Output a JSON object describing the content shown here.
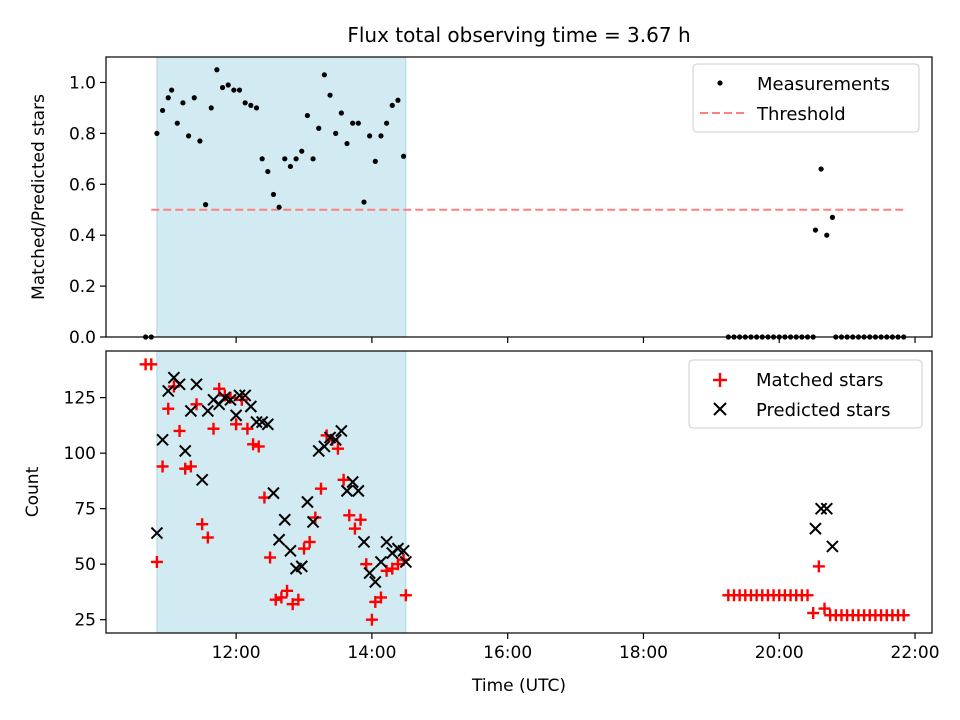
{
  "figure": {
    "title": "Flux total observing time = 3.67 h",
    "xlabel": "Time (UTC)"
  },
  "colors": {
    "shade": "#add8e6",
    "measurement": "#000000",
    "threshold": "#ff7f7f",
    "matched": "#ff0000",
    "predicted": "#000000"
  },
  "chart_data": [
    {
      "type": "scatter",
      "ylabel": "Matched/Predicted stars",
      "xlim": [
        "10:05",
        "22:15"
      ],
      "ylim": [
        0,
        1.1
      ],
      "x_ticks": [
        "12:00",
        "14:00",
        "16:00",
        "18:00",
        "20:00",
        "22:00"
      ],
      "x_ticks_labeled": false,
      "y_ticks": [
        "0.0",
        "0.2",
        "0.4",
        "0.6",
        "0.8",
        "1.0"
      ],
      "grid": false,
      "legend": {
        "position": "top-right",
        "entries": [
          "Measurements",
          "Threshold"
        ]
      },
      "shaded_interval": {
        "start": "10:50",
        "end": "14:30"
      },
      "threshold": {
        "name": "Threshold",
        "value": 0.5,
        "x_start": "10:45",
        "x_end": "21:50",
        "style": "dashed"
      },
      "series": [
        {
          "name": "Measurements",
          "marker": "dot",
          "points": [
            [
              "10:40",
              0
            ],
            [
              "10:45",
              0
            ],
            [
              "10:50",
              0.8
            ],
            [
              "10:55",
              0.89
            ],
            [
              "11:00",
              0.94
            ],
            [
              "11:03",
              0.97
            ],
            [
              "11:08",
              0.84
            ],
            [
              "11:13",
              0.92
            ],
            [
              "11:18",
              0.79
            ],
            [
              "11:23",
              0.94
            ],
            [
              "11:28",
              0.77
            ],
            [
              "11:33",
              0.52
            ],
            [
              "11:38",
              0.9
            ],
            [
              "11:43",
              1.05
            ],
            [
              "11:48",
              0.98
            ],
            [
              "11:53",
              0.99
            ],
            [
              "11:58",
              0.97
            ],
            [
              "12:03",
              0.97
            ],
            [
              "12:08",
              0.92
            ],
            [
              "12:13",
              0.91
            ],
            [
              "12:18",
              0.9
            ],
            [
              "12:23",
              0.7
            ],
            [
              "12:28",
              0.65
            ],
            [
              "12:33",
              0.56
            ],
            [
              "12:38",
              0.51
            ],
            [
              "12:43",
              0.7
            ],
            [
              "12:48",
              0.67
            ],
            [
              "12:53",
              0.7
            ],
            [
              "12:58",
              0.73
            ],
            [
              "13:03",
              0.87
            ],
            [
              "13:08",
              0.7
            ],
            [
              "13:13",
              0.82
            ],
            [
              "13:18",
              1.03
            ],
            [
              "13:23",
              0.95
            ],
            [
              "13:28",
              0.8
            ],
            [
              "13:33",
              0.88
            ],
            [
              "13:38",
              0.76
            ],
            [
              "13:43",
              0.84
            ],
            [
              "13:48",
              0.84
            ],
            [
              "13:53",
              0.53
            ],
            [
              "13:58",
              0.79
            ],
            [
              "14:03",
              0.69
            ],
            [
              "14:08",
              0.79
            ],
            [
              "14:13",
              0.84
            ],
            [
              "14:18",
              0.91
            ],
            [
              "14:23",
              0.93
            ],
            [
              "14:28",
              0.71
            ],
            [
              "19:15",
              0
            ],
            [
              "19:20",
              0
            ],
            [
              "19:25",
              0
            ],
            [
              "19:30",
              0
            ],
            [
              "19:35",
              0
            ],
            [
              "19:40",
              0
            ],
            [
              "19:45",
              0
            ],
            [
              "19:50",
              0
            ],
            [
              "19:55",
              0
            ],
            [
              "20:00",
              0
            ],
            [
              "20:05",
              0
            ],
            [
              "20:10",
              0
            ],
            [
              "20:15",
              0
            ],
            [
              "20:20",
              0
            ],
            [
              "20:25",
              0
            ],
            [
              "20:30",
              0
            ],
            [
              "20:32",
              0.42
            ],
            [
              "20:37",
              0.66
            ],
            [
              "20:42",
              0.4
            ],
            [
              "20:47",
              0.47
            ],
            [
              "20:50",
              0
            ],
            [
              "20:55",
              0
            ],
            [
              "21:00",
              0
            ],
            [
              "21:05",
              0
            ],
            [
              "21:10",
              0
            ],
            [
              "21:15",
              0
            ],
            [
              "21:20",
              0
            ],
            [
              "21:25",
              0
            ],
            [
              "21:30",
              0
            ],
            [
              "21:35",
              0
            ],
            [
              "21:40",
              0
            ],
            [
              "21:45",
              0
            ],
            [
              "21:50",
              0
            ]
          ]
        }
      ]
    },
    {
      "type": "scatter",
      "ylabel": "Count",
      "xlabel": "Time (UTC)",
      "xlim": [
        "10:05",
        "22:15"
      ],
      "ylim": [
        19,
        146
      ],
      "x_ticks": [
        "12:00",
        "14:00",
        "16:00",
        "18:00",
        "20:00",
        "22:00"
      ],
      "y_ticks": [
        "25",
        "50",
        "75",
        "100",
        "125"
      ],
      "grid": false,
      "legend": {
        "position": "top-right",
        "entries": [
          "Matched stars",
          "Predicted stars"
        ]
      },
      "shaded_interval": {
        "start": "10:50",
        "end": "14:30"
      },
      "series": [
        {
          "name": "Matched stars",
          "marker": "plus",
          "points": [
            [
              "10:40",
              140
            ],
            [
              "10:45",
              140
            ],
            [
              "10:50",
              51
            ],
            [
              "10:55",
              94
            ],
            [
              "11:00",
              120
            ],
            [
              "11:05",
              130
            ],
            [
              "11:10",
              110
            ],
            [
              "11:15",
              93
            ],
            [
              "11:20",
              94
            ],
            [
              "11:25",
              122
            ],
            [
              "11:30",
              68
            ],
            [
              "11:35",
              62
            ],
            [
              "11:40",
              111
            ],
            [
              "11:45",
              129
            ],
            [
              "11:50",
              126
            ],
            [
              "11:55",
              125
            ],
            [
              "12:00",
              113
            ],
            [
              "12:05",
              124
            ],
            [
              "12:10",
              111
            ],
            [
              "12:15",
              104
            ],
            [
              "12:20",
              103
            ],
            [
              "12:25",
              80
            ],
            [
              "12:30",
              53
            ],
            [
              "12:35",
              34
            ],
            [
              "12:40",
              35
            ],
            [
              "12:45",
              38
            ],
            [
              "12:50",
              32
            ],
            [
              "12:55",
              34
            ],
            [
              "13:00",
              57
            ],
            [
              "13:05",
              60
            ],
            [
              "13:10",
              71
            ],
            [
              "13:15",
              84
            ],
            [
              "13:20",
              108
            ],
            [
              "13:25",
              106
            ],
            [
              "13:30",
              102
            ],
            [
              "13:35",
              88
            ],
            [
              "13:40",
              72
            ],
            [
              "13:45",
              66
            ],
            [
              "13:50",
              70
            ],
            [
              "13:55",
              50
            ],
            [
              "14:00",
              25
            ],
            [
              "14:03",
              33
            ],
            [
              "14:08",
              35
            ],
            [
              "14:13",
              47
            ],
            [
              "14:18",
              48
            ],
            [
              "14:23",
              50
            ],
            [
              "14:28",
              52
            ],
            [
              "14:30",
              36
            ],
            [
              "19:15",
              36
            ],
            [
              "19:20",
              36
            ],
            [
              "19:25",
              36
            ],
            [
              "19:30",
              36
            ],
            [
              "19:35",
              36
            ],
            [
              "19:40",
              36
            ],
            [
              "19:45",
              36
            ],
            [
              "19:50",
              36
            ],
            [
              "19:55",
              36
            ],
            [
              "20:00",
              36
            ],
            [
              "20:05",
              36
            ],
            [
              "20:10",
              36
            ],
            [
              "20:15",
              36
            ],
            [
              "20:20",
              36
            ],
            [
              "20:25",
              36
            ],
            [
              "20:30",
              28
            ],
            [
              "20:35",
              49
            ],
            [
              "20:40",
              30
            ],
            [
              "20:45",
              27
            ],
            [
              "20:50",
              27
            ],
            [
              "20:55",
              27
            ],
            [
              "21:00",
              27
            ],
            [
              "21:05",
              27
            ],
            [
              "21:10",
              27
            ],
            [
              "21:15",
              27
            ],
            [
              "21:20",
              27
            ],
            [
              "21:25",
              27
            ],
            [
              "21:30",
              27
            ],
            [
              "21:35",
              27
            ],
            [
              "21:40",
              27
            ],
            [
              "21:45",
              27
            ],
            [
              "21:50",
              27
            ]
          ]
        },
        {
          "name": "Predicted stars",
          "marker": "x",
          "points": [
            [
              "10:50",
              64
            ],
            [
              "10:55",
              106
            ],
            [
              "11:00",
              128
            ],
            [
              "11:05",
              134
            ],
            [
              "11:10",
              131
            ],
            [
              "11:15",
              101
            ],
            [
              "11:20",
              119
            ],
            [
              "11:25",
              131
            ],
            [
              "11:30",
              88
            ],
            [
              "11:35",
              119
            ],
            [
              "11:40",
              124
            ],
            [
              "11:45",
              122
            ],
            [
              "11:50",
              125
            ],
            [
              "11:55",
              124
            ],
            [
              "12:00",
              117
            ],
            [
              "12:03",
              126
            ],
            [
              "12:08",
              126
            ],
            [
              "12:13",
              121
            ],
            [
              "12:18",
              114
            ],
            [
              "12:23",
              114
            ],
            [
              "12:28",
              113
            ],
            [
              "12:33",
              82
            ],
            [
              "12:38",
              61
            ],
            [
              "12:43",
              70
            ],
            [
              "12:48",
              56
            ],
            [
              "12:53",
              48
            ],
            [
              "12:58",
              49
            ],
            [
              "13:03",
              78
            ],
            [
              "13:08",
              69
            ],
            [
              "13:13",
              101
            ],
            [
              "13:18",
              103
            ],
            [
              "13:23",
              107
            ],
            [
              "13:28",
              106
            ],
            [
              "13:33",
              110
            ],
            [
              "13:38",
              83
            ],
            [
              "13:43",
              87
            ],
            [
              "13:48",
              83
            ],
            [
              "13:53",
              60
            ],
            [
              "13:58",
              46
            ],
            [
              "14:03",
              42
            ],
            [
              "14:08",
              51
            ],
            [
              "14:13",
              60
            ],
            [
              "14:18",
              55
            ],
            [
              "14:23",
              57
            ],
            [
              "14:28",
              56
            ],
            [
              "14:30",
              51
            ],
            [
              "20:32",
              66
            ],
            [
              "20:37",
              75
            ],
            [
              "20:42",
              75
            ],
            [
              "20:47",
              58
            ]
          ]
        }
      ]
    }
  ]
}
